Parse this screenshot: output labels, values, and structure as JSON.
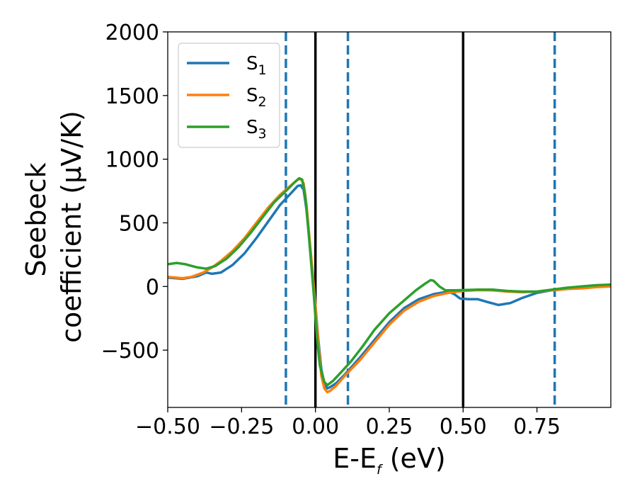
{
  "chart_data": {
    "type": "line",
    "title": "",
    "xlabel": "E-E",
    "xlabel_sub": "f",
    "xlabel_unit": " (eV)",
    "ylabel_line1": "Seebeck",
    "ylabel_line2": "coefficient  (μV/K)",
    "xlim": [
      -0.5,
      1.0
    ],
    "ylim": [
      -950,
      2000
    ],
    "x_ticks": [
      -0.5,
      -0.25,
      0.0,
      0.25,
      0.5,
      0.75
    ],
    "x_tick_labels": [
      "−0.50",
      "−0.25",
      "0.00",
      "0.25",
      "0.50",
      "0.75"
    ],
    "y_ticks": [
      -500,
      0,
      500,
      1000,
      1500,
      2000
    ],
    "y_tick_labels": [
      "−500",
      "0",
      "500",
      "1000",
      "1500",
      "2000"
    ],
    "grid": false,
    "legend_position": "top-left",
    "vertical_lines": [
      {
        "x": -0.1,
        "style": "dashed",
        "color": "#1f77b4"
      },
      {
        "x": 0.0,
        "style": "solid",
        "color": "#000000"
      },
      {
        "x": 0.11,
        "style": "dashed",
        "color": "#1f77b4"
      },
      {
        "x": 0.5,
        "style": "solid",
        "color": "#000000"
      },
      {
        "x": 0.81,
        "style": "dashed",
        "color": "#1f77b4"
      }
    ],
    "series": [
      {
        "name": "S",
        "sub": "1",
        "color": "#1f77b4",
        "points": [
          [
            -0.5,
            70
          ],
          [
            -0.45,
            60
          ],
          [
            -0.4,
            80
          ],
          [
            -0.37,
            110
          ],
          [
            -0.35,
            100
          ],
          [
            -0.32,
            110
          ],
          [
            -0.28,
            170
          ],
          [
            -0.24,
            260
          ],
          [
            -0.2,
            380
          ],
          [
            -0.16,
            510
          ],
          [
            -0.12,
            640
          ],
          [
            -0.08,
            740
          ],
          [
            -0.06,
            790
          ],
          [
            -0.05,
            795
          ],
          [
            -0.04,
            760
          ],
          [
            -0.03,
            600
          ],
          [
            -0.02,
            350
          ],
          [
            -0.01,
            100
          ],
          [
            0.0,
            -150
          ],
          [
            0.01,
            -420
          ],
          [
            0.02,
            -650
          ],
          [
            0.03,
            -760
          ],
          [
            0.04,
            -800
          ],
          [
            0.05,
            -790
          ],
          [
            0.07,
            -760
          ],
          [
            0.1,
            -690
          ],
          [
            0.15,
            -560
          ],
          [
            0.2,
            -420
          ],
          [
            0.25,
            -280
          ],
          [
            0.3,
            -170
          ],
          [
            0.35,
            -100
          ],
          [
            0.4,
            -60
          ],
          [
            0.45,
            -40
          ],
          [
            0.47,
            -60
          ],
          [
            0.49,
            -95
          ],
          [
            0.52,
            -100
          ],
          [
            0.55,
            -100
          ],
          [
            0.58,
            -120
          ],
          [
            0.62,
            -145
          ],
          [
            0.66,
            -130
          ],
          [
            0.7,
            -90
          ],
          [
            0.75,
            -50
          ],
          [
            0.8,
            -30
          ],
          [
            0.85,
            -20
          ],
          [
            0.9,
            -10
          ],
          [
            0.95,
            0
          ],
          [
            1.0,
            10
          ]
        ]
      },
      {
        "name": "S",
        "sub": "2",
        "color": "#ff7f0e",
        "points": [
          [
            -0.5,
            75
          ],
          [
            -0.45,
            65
          ],
          [
            -0.42,
            75
          ],
          [
            -0.38,
            110
          ],
          [
            -0.35,
            150
          ],
          [
            -0.32,
            200
          ],
          [
            -0.28,
            280
          ],
          [
            -0.24,
            380
          ],
          [
            -0.2,
            500
          ],
          [
            -0.16,
            620
          ],
          [
            -0.12,
            720
          ],
          [
            -0.08,
            800
          ],
          [
            -0.06,
            840
          ],
          [
            -0.05,
            845
          ],
          [
            -0.04,
            810
          ],
          [
            -0.03,
            640
          ],
          [
            -0.02,
            380
          ],
          [
            -0.01,
            120
          ],
          [
            0.0,
            -150
          ],
          [
            0.01,
            -450
          ],
          [
            0.02,
            -700
          ],
          [
            0.03,
            -800
          ],
          [
            0.04,
            -830
          ],
          [
            0.05,
            -820
          ],
          [
            0.07,
            -780
          ],
          [
            0.1,
            -700
          ],
          [
            0.15,
            -580
          ],
          [
            0.2,
            -440
          ],
          [
            0.25,
            -300
          ],
          [
            0.3,
            -190
          ],
          [
            0.35,
            -120
          ],
          [
            0.4,
            -75
          ],
          [
            0.45,
            -50
          ],
          [
            0.5,
            -35
          ],
          [
            0.55,
            -28
          ],
          [
            0.6,
            -30
          ],
          [
            0.65,
            -40
          ],
          [
            0.7,
            -45
          ],
          [
            0.75,
            -40
          ],
          [
            0.8,
            -30
          ],
          [
            0.85,
            -20
          ],
          [
            0.9,
            -15
          ],
          [
            0.95,
            -5
          ],
          [
            1.0,
            0
          ]
        ]
      },
      {
        "name": "S",
        "sub": "3",
        "color": "#2ca02c",
        "points": [
          [
            -0.5,
            175
          ],
          [
            -0.47,
            185
          ],
          [
            -0.44,
            175
          ],
          [
            -0.4,
            150
          ],
          [
            -0.37,
            140
          ],
          [
            -0.34,
            160
          ],
          [
            -0.3,
            220
          ],
          [
            -0.26,
            310
          ],
          [
            -0.22,
            420
          ],
          [
            -0.18,
            540
          ],
          [
            -0.14,
            660
          ],
          [
            -0.1,
            750
          ],
          [
            -0.07,
            820
          ],
          [
            -0.055,
            850
          ],
          [
            -0.045,
            840
          ],
          [
            -0.035,
            720
          ],
          [
            -0.025,
            480
          ],
          [
            -0.015,
            200
          ],
          [
            -0.005,
            -80
          ],
          [
            0.005,
            -400
          ],
          [
            0.015,
            -620
          ],
          [
            0.03,
            -750
          ],
          [
            0.04,
            -775
          ],
          [
            0.06,
            -740
          ],
          [
            0.08,
            -690
          ],
          [
            0.12,
            -590
          ],
          [
            0.16,
            -470
          ],
          [
            0.2,
            -340
          ],
          [
            0.25,
            -210
          ],
          [
            0.3,
            -110
          ],
          [
            0.34,
            -30
          ],
          [
            0.37,
            20
          ],
          [
            0.39,
            50
          ],
          [
            0.4,
            45
          ],
          [
            0.42,
            0
          ],
          [
            0.44,
            -30
          ],
          [
            0.47,
            -30
          ],
          [
            0.5,
            -28
          ],
          [
            0.55,
            -25
          ],
          [
            0.6,
            -25
          ],
          [
            0.65,
            -35
          ],
          [
            0.7,
            -40
          ],
          [
            0.75,
            -40
          ],
          [
            0.8,
            -25
          ],
          [
            0.85,
            -10
          ],
          [
            0.9,
            0
          ],
          [
            0.95,
            10
          ],
          [
            1.0,
            15
          ]
        ]
      }
    ]
  }
}
